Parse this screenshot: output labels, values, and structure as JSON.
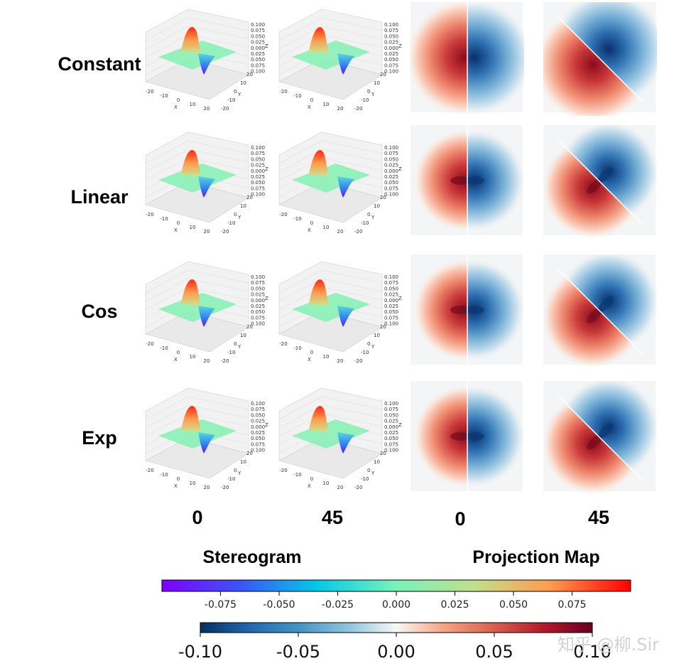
{
  "chart_data": {
    "type": "heatmap",
    "title": "",
    "rows": [
      "Constant",
      "Linear",
      "Cos",
      "Exp"
    ],
    "angles": [
      "0",
      "45"
    ],
    "group_labels": {
      "stereogram": "Stereogram",
      "projection": "Projection Map"
    },
    "stereogram_axes": {
      "z_ticks": [
        "0.100",
        "0.075",
        "0.050",
        "0.025",
        "0.000",
        "0.025",
        "0.050",
        "0.075",
        "0.100"
      ],
      "x_ticks": [
        "-20",
        "-10",
        "0",
        "10",
        "20"
      ],
      "y_ticks": [
        "20",
        "10",
        "0",
        "-10",
        "-20"
      ],
      "xlabel": "X",
      "ylabel": "Y",
      "zlabel": "Z",
      "zlim": [
        -0.1,
        0.1
      ]
    },
    "colorbars": [
      {
        "name": "rainbow",
        "range": [
          -0.1,
          0.1
        ],
        "ticks": [
          "-0.075",
          "-0.050",
          "-0.025",
          "0.000",
          "0.025",
          "0.050",
          "0.075"
        ],
        "stops": [
          "#7f00ff",
          "#3a57f5",
          "#05c8e6",
          "#79f2b9",
          "#c4dd8e",
          "#ff9b4f",
          "#ff0000"
        ]
      },
      {
        "name": "RdBu_r",
        "range": [
          -0.1,
          0.1
        ],
        "ticks": [
          "-0.10",
          "-0.05",
          "0.00",
          "0.05",
          "0.10"
        ],
        "stops": [
          "#053061",
          "#2166ac",
          "#4393c3",
          "#92c5de",
          "#f7f7f7",
          "#f4a582",
          "#d6604d",
          "#b2182b",
          "#67001f"
        ]
      }
    ],
    "watermark": "知乎 @柳.Sir"
  }
}
